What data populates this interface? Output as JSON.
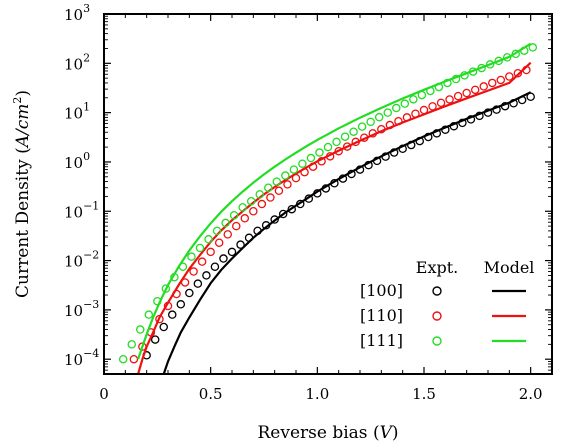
{
  "chart_data": {
    "type": "scatter",
    "xlabel": {
      "text": "Reverse bias ",
      "unit": "V"
    },
    "ylabel": {
      "text": "Current Density ",
      "unit": "A/cm",
      "unit_power": "2"
    },
    "xlim": [
      0,
      2.1
    ],
    "ylim_log10": [
      -4.3,
      3
    ],
    "y_scale": "log",
    "grid": false,
    "x_ticks": [
      {
        "value": 0,
        "label": "0"
      },
      {
        "value": 0.5,
        "label": "0.5"
      },
      {
        "value": 1.0,
        "label": "1.0"
      },
      {
        "value": 1.5,
        "label": "1.5"
      },
      {
        "value": 2.0,
        "label": "2.0"
      }
    ],
    "y_ticks": [
      {
        "exp": 3,
        "base": "10",
        "power": "3"
      },
      {
        "exp": 2,
        "base": "10",
        "power": "2"
      },
      {
        "exp": 1,
        "base": "10",
        "power": "1"
      },
      {
        "exp": 0,
        "base": "10",
        "power": "0"
      },
      {
        "exp": -1,
        "base": "10",
        "power": "−1"
      },
      {
        "exp": -2,
        "base": "10",
        "power": "−2"
      },
      {
        "exp": -3,
        "base": "10",
        "power": "−3"
      },
      {
        "exp": -4,
        "base": "10",
        "power": "−4"
      }
    ],
    "legend": {
      "position": "lower-right",
      "header_expt": "Expt.",
      "header_model": "Model"
    },
    "series": [
      {
        "name": "[100]",
        "color": "#000000",
        "expt_x": [
          0.2,
          0.24,
          0.28,
          0.32,
          0.36,
          0.4,
          0.44,
          0.48,
          0.52,
          0.56,
          0.6,
          0.64,
          0.68,
          0.72,
          0.76,
          0.8,
          0.84,
          0.88,
          0.92,
          0.96,
          1.0,
          1.04,
          1.08,
          1.12,
          1.16,
          1.2,
          1.24,
          1.28,
          1.32,
          1.36,
          1.4,
          1.44,
          1.48,
          1.52,
          1.56,
          1.6,
          1.64,
          1.68,
          1.72,
          1.76,
          1.8,
          1.84,
          1.88,
          1.92,
          1.96,
          2.0
        ],
        "expt_y": [
          0.00012,
          0.00025,
          0.00045,
          0.0008,
          0.0013,
          0.0022,
          0.0034,
          0.005,
          0.0075,
          0.011,
          0.015,
          0.021,
          0.029,
          0.04,
          0.052,
          0.068,
          0.088,
          0.11,
          0.14,
          0.18,
          0.23,
          0.29,
          0.37,
          0.46,
          0.57,
          0.7,
          0.86,
          1.05,
          1.28,
          1.55,
          1.85,
          2.2,
          2.65,
          3.2,
          3.8,
          4.5,
          5.3,
          6.2,
          7.3,
          8.6,
          10,
          11.5,
          13.5,
          15.5,
          18,
          21
        ],
        "model_x": [
          0.28,
          0.3,
          0.33,
          0.36,
          0.4,
          0.45,
          0.5,
          0.55,
          0.6,
          0.65,
          0.7,
          0.75,
          0.8,
          0.85,
          0.9,
          0.95,
          1.0,
          1.1,
          1.2,
          1.3,
          1.4,
          1.5,
          1.6,
          1.7,
          1.8,
          1.9,
          2.0
        ],
        "model_y": [
          5e-05,
          9e-05,
          0.00018,
          0.00035,
          0.0007,
          0.0016,
          0.0035,
          0.0065,
          0.011,
          0.018,
          0.029,
          0.044,
          0.065,
          0.094,
          0.13,
          0.18,
          0.25,
          0.45,
          0.78,
          1.3,
          2.1,
          3.3,
          5.0,
          7.5,
          11,
          16,
          26
        ]
      },
      {
        "name": "[110]",
        "color": "#ee1111",
        "expt_x": [
          0.14,
          0.18,
          0.22,
          0.26,
          0.3,
          0.34,
          0.38,
          0.42,
          0.46,
          0.5,
          0.54,
          0.58,
          0.62,
          0.66,
          0.7,
          0.74,
          0.78,
          0.82,
          0.86,
          0.9,
          0.94,
          0.98,
          1.02,
          1.06,
          1.1,
          1.14,
          1.18,
          1.22,
          1.26,
          1.3,
          1.34,
          1.38,
          1.42,
          1.46,
          1.5,
          1.54,
          1.58,
          1.62,
          1.66,
          1.7,
          1.74,
          1.78,
          1.82,
          1.86,
          1.9,
          1.94,
          1.98
        ],
        "expt_y": [
          0.0001,
          0.00018,
          0.00035,
          0.00065,
          0.0012,
          0.0021,
          0.0036,
          0.006,
          0.0095,
          0.015,
          0.023,
          0.034,
          0.05,
          0.072,
          0.1,
          0.14,
          0.19,
          0.26,
          0.35,
          0.47,
          0.62,
          0.8,
          1.03,
          1.3,
          1.65,
          2.05,
          2.55,
          3.1,
          3.8,
          4.6,
          5.6,
          6.7,
          8.0,
          9.5,
          11.3,
          13.4,
          15.8,
          18.5,
          21.6,
          25,
          29,
          34,
          40,
          46,
          54,
          63,
          73
        ],
        "model_x": [
          0.16,
          0.18,
          0.2,
          0.23,
          0.26,
          0.3,
          0.35,
          0.4,
          0.45,
          0.5,
          0.55,
          0.6,
          0.65,
          0.7,
          0.75,
          0.8,
          0.85,
          0.9,
          0.95,
          1.0,
          1.1,
          1.2,
          1.3,
          1.4,
          1.5,
          1.6,
          1.7,
          1.8,
          1.9,
          2.0
        ],
        "model_y": [
          5e-05,
          0.0001,
          0.00018,
          0.00035,
          0.0007,
          0.0014,
          0.0032,
          0.0068,
          0.013,
          0.024,
          0.041,
          0.066,
          0.1,
          0.15,
          0.22,
          0.31,
          0.43,
          0.58,
          0.78,
          1.03,
          1.7,
          2.7,
          4.2,
          6.3,
          9.2,
          13.5,
          19.5,
          28,
          40,
          103
        ]
      },
      {
        "name": "[111]",
        "color": "#22dd22",
        "expt_x": [
          0.09,
          0.13,
          0.17,
          0.21,
          0.25,
          0.29,
          0.33,
          0.37,
          0.41,
          0.45,
          0.49,
          0.53,
          0.57,
          0.61,
          0.65,
          0.69,
          0.73,
          0.77,
          0.81,
          0.85,
          0.89,
          0.93,
          0.97,
          1.01,
          1.05,
          1.09,
          1.13,
          1.17,
          1.21,
          1.25,
          1.29,
          1.33,
          1.37,
          1.41,
          1.45,
          1.49,
          1.53,
          1.57,
          1.61,
          1.65,
          1.69,
          1.73,
          1.77,
          1.81,
          1.85,
          1.89,
          1.93,
          1.97,
          2.01
        ],
        "expt_y": [
          0.0001,
          0.0002,
          0.0004,
          0.0008,
          0.0015,
          0.0027,
          0.0046,
          0.0075,
          0.012,
          0.018,
          0.027,
          0.04,
          0.058,
          0.083,
          0.12,
          0.16,
          0.22,
          0.3,
          0.4,
          0.53,
          0.7,
          0.92,
          1.2,
          1.55,
          2.0,
          2.55,
          3.25,
          4.1,
          5.2,
          6.5,
          8.1,
          10,
          12.4,
          15.2,
          18.6,
          22.7,
          27.5,
          33,
          40,
          48,
          57,
          68,
          80,
          95,
          112,
          132,
          155,
          180,
          210
        ],
        "model_x": [
          0.16,
          0.18,
          0.2,
          0.23,
          0.26,
          0.3,
          0.35,
          0.4,
          0.45,
          0.5,
          0.55,
          0.6,
          0.65,
          0.7,
          0.75,
          0.8,
          0.85,
          0.9,
          0.95,
          1.0,
          1.1,
          1.2,
          1.3,
          1.4,
          1.5,
          1.6,
          1.7,
          1.8,
          1.9,
          2.0
        ],
        "model_y": [
          0.0001,
          0.00018,
          0.00032,
          0.0007,
          0.0014,
          0.0032,
          0.0075,
          0.016,
          0.031,
          0.057,
          0.098,
          0.16,
          0.25,
          0.38,
          0.56,
          0.8,
          1.12,
          1.54,
          2.1,
          2.8,
          4.8,
          7.9,
          12.5,
          19.3,
          29,
          43,
          63,
          92,
          135,
          250
        ]
      }
    ]
  }
}
